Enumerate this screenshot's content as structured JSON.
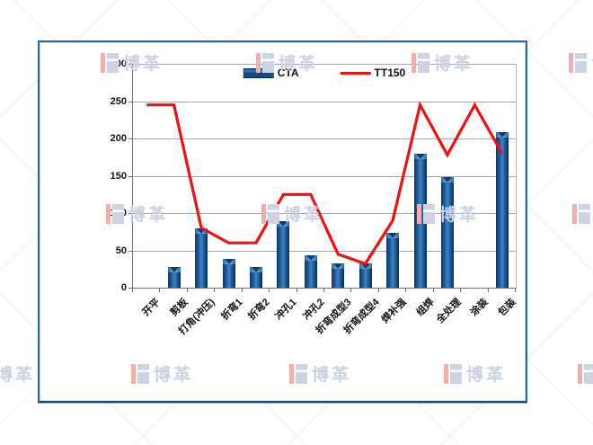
{
  "watermark": {
    "text": "博革",
    "logo": "boge-logo-icon"
  },
  "colors": {
    "frame_border": "#2f6496",
    "bar_fill": "#1e5c9e",
    "line_stroke": "#ee1111",
    "gridline": "#a6a6a6",
    "watermark_red": "#f2aeab",
    "watermark_gray": "#ccd2e2"
  },
  "chart_data": {
    "type": "bar",
    "subtype": "bar+line combo",
    "categories": [
      "开平",
      "剪板",
      "打角(冲压)",
      "折弯1",
      "折弯2",
      "冲孔1",
      "冲孔2",
      "折弯成型3",
      "折弯成型4",
      "焊补强",
      "组焊",
      "全处理",
      "涂装",
      "包装"
    ],
    "series": [
      {
        "name": "CTA",
        "type": "bar",
        "color": "#1e5c9e",
        "values": [
          null,
          28,
          79,
          38,
          28,
          89,
          43,
          33,
          32,
          73,
          179,
          148,
          null,
          209
        ]
      },
      {
        "name": "TT150",
        "type": "line",
        "color": "#ee1111",
        "values": [
          245,
          245,
          80,
          60,
          60,
          125,
          125,
          45,
          32,
          90,
          245,
          178,
          245,
          180
        ]
      }
    ],
    "title": "",
    "xlabel": "",
    "ylabel": "",
    "ylim": [
      0,
      300
    ],
    "ytick_interval": 50,
    "ytick_labels": [
      "0",
      "50",
      "100",
      "150",
      "200",
      "250",
      "300"
    ],
    "grid": "horizontal",
    "legend_position": "top-center"
  }
}
